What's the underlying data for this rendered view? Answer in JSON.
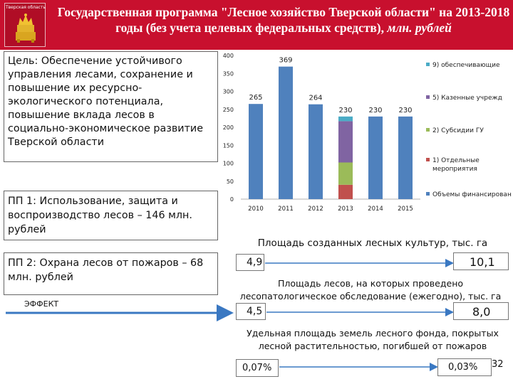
{
  "header": {
    "emblem_caption": "Тверская область",
    "title": "Государственная программа \"Лесное хозяйство Тверской области\" на 2013-2018 годы (без учета целевых федеральных средств), ",
    "title_unit": "млн. рублей"
  },
  "left": {
    "goal_label": "Цель",
    "goal_text": ": Обеспечение устойчивого управления лесами, сохранение и повышение их ресурсно-экологического потенциала, повышение вклада лесов в социально-экономическое развитие Тверской области",
    "pp1": "ПП 1: Использование, защита и воспроизводство лесов – 146 млн. рублей",
    "pp2": "ПП 2: Охрана лесов от пожаров – 68 млн. рублей",
    "effect_label": "ЭФФЕКТ"
  },
  "chart_data": {
    "type": "bar",
    "categories": [
      "2010",
      "2011",
      "2012",
      "2013",
      "2014",
      "2015"
    ],
    "ylim": [
      0,
      400
    ],
    "yticks": [
      0,
      50,
      100,
      150,
      200,
      250,
      300,
      350,
      400
    ],
    "totals": [
      265,
      369,
      264,
      230,
      230,
      230
    ],
    "data_labels": [
      "265",
      "369",
      "264",
      "230",
      "230",
      "230"
    ],
    "series": [
      {
        "name": "Объемы финансирования",
        "color": "#4f81bd",
        "values": [
          265,
          369,
          264,
          0,
          230,
          230
        ]
      },
      {
        "name": "1) Отдельные мероприятия",
        "color": "#c0504d",
        "values": [
          0,
          0,
          0,
          40,
          0,
          0
        ]
      },
      {
        "name": "2) Субсидии ГУ",
        "color": "#9bbb59",
        "values": [
          0,
          0,
          0,
          62,
          0,
          0
        ]
      },
      {
        "name": "5) Казенные учрежд",
        "color": "#8064a2",
        "values": [
          0,
          0,
          0,
          115,
          0,
          0
        ]
      },
      {
        "name": "9) обеспечивающие",
        "color": "#4bacc6",
        "values": [
          0,
          0,
          0,
          13,
          0,
          0
        ]
      }
    ],
    "legend_order": [
      4,
      3,
      2,
      1,
      0
    ],
    "legend_position": "right",
    "grid": false
  },
  "indicators": [
    {
      "title": "Площадь созданных лесных культур, тыс. га",
      "from": "4,9",
      "to": "10,1"
    },
    {
      "title": "Площадь лесов, на которых проведено лесопатологическое обследование (ежегодно), тыс. га",
      "from": "4,5",
      "to": "8,0"
    },
    {
      "title": "Удельная площадь земель лесного фонда, покрытых лесной растительностью, погибшей от пожаров",
      "from": "0,07%",
      "to": "0,03%"
    }
  ],
  "page_number": "32",
  "colors": {
    "header": "#c8102e",
    "arrow": "#3a78c2"
  }
}
